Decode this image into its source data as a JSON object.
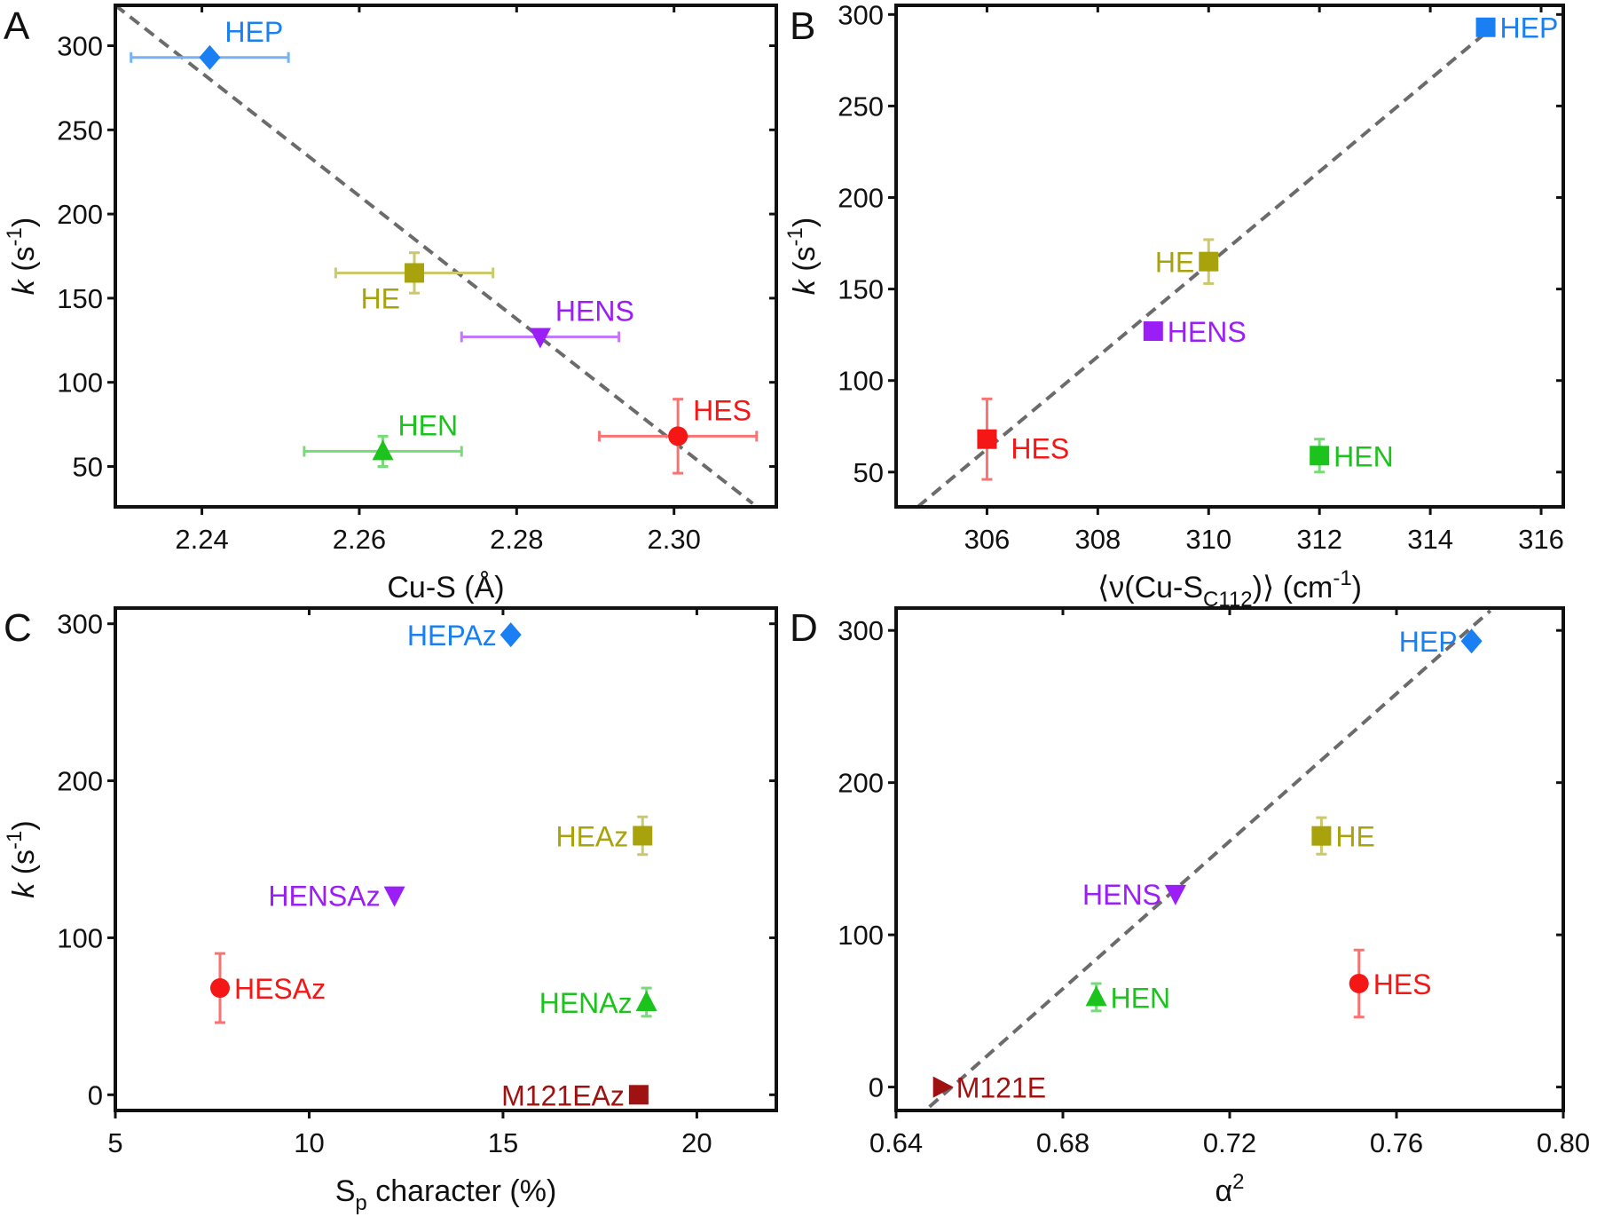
{
  "colors": {
    "HEP": "#1a7ff2",
    "HE": "#a8a30c",
    "HENS": "#9a1ef5",
    "HEN": "#1cc31c",
    "HES": "#f51616",
    "M121E": "#a01212",
    "fit": "#6b6b6b",
    "axis": "#111111"
  },
  "chart_data": [
    {
      "panel": "A",
      "type": "scatter",
      "xlabel": {
        "main": "Cu-S (Å)"
      },
      "ylabel": {
        "k": "k",
        "open": " (s",
        "sup": "-1",
        "close": ")"
      },
      "xlim": [
        2.229,
        2.313
      ],
      "ylim": [
        26,
        324
      ],
      "xticks": [
        {
          "v": 2.24,
          "label": "2.24"
        },
        {
          "v": 2.26,
          "label": "2.26"
        },
        {
          "v": 2.28,
          "label": "2.28"
        },
        {
          "v": 2.3,
          "label": "2.30"
        }
      ],
      "yticks": [
        {
          "v": 50,
          "label": "50"
        },
        {
          "v": 100,
          "label": "100"
        },
        {
          "v": 150,
          "label": "150"
        },
        {
          "v": 200,
          "label": "200"
        },
        {
          "v": 250,
          "label": "250"
        },
        {
          "v": 300,
          "label": "300"
        }
      ],
      "fit_line": [
        [
          2.229,
          324
        ],
        [
          2.31,
          28
        ]
      ],
      "points": [
        {
          "label": "HEP",
          "key": "HEP",
          "x": 2.241,
          "y": 293,
          "xerr": 0.01,
          "yerr": 0,
          "marker": "diamond",
          "label_pos": "above-right"
        },
        {
          "label": "HE",
          "key": "HE",
          "x": 2.267,
          "y": 165,
          "xerr": 0.01,
          "yerr": 12,
          "marker": "square",
          "label_pos": "below-left"
        },
        {
          "label": "HENS",
          "key": "HENS",
          "x": 2.283,
          "y": 127,
          "xerr": 0.01,
          "yerr": 0,
          "marker": "triangle-down",
          "label_pos": "above-right"
        },
        {
          "label": "HEN",
          "key": "HEN",
          "x": 2.263,
          "y": 59,
          "xerr": 0.01,
          "yerr": 9,
          "marker": "triangle-up",
          "label_pos": "above-right"
        },
        {
          "label": "HES",
          "key": "HES",
          "x": 2.3005,
          "y": 68,
          "xerr": 0.01,
          "yerr": 22,
          "marker": "circle",
          "label_pos": "above-right"
        }
      ]
    },
    {
      "panel": "B",
      "type": "scatter",
      "xlabel": {
        "pre": "⟨ν(Cu-S",
        "sub": "C112",
        "mid": ")⟩ (cm",
        "sup": "-1",
        "post": ")"
      },
      "ylabel": {
        "k": "k",
        "open": " (s",
        "sup": "-1",
        "close": ")"
      },
      "xlim": [
        304.36,
        316.4
      ],
      "ylim": [
        31,
        305
      ],
      "xticks": [
        {
          "v": 306,
          "label": "306"
        },
        {
          "v": 308,
          "label": "308"
        },
        {
          "v": 310,
          "label": "310"
        },
        {
          "v": 312,
          "label": "312"
        },
        {
          "v": 314,
          "label": "314"
        },
        {
          "v": 316,
          "label": "316"
        }
      ],
      "yticks": [
        {
          "v": 50,
          "label": "50"
        },
        {
          "v": 100,
          "label": "100"
        },
        {
          "v": 150,
          "label": "150"
        },
        {
          "v": 200,
          "label": "200"
        },
        {
          "v": 250,
          "label": "250"
        },
        {
          "v": 300,
          "label": "300"
        }
      ],
      "fit_line": [
        [
          304.75,
          31
        ],
        [
          315.0,
          290
        ]
      ],
      "points": [
        {
          "label": "HEP",
          "key": "HEP",
          "x": 315,
          "y": 293,
          "xerr": 0,
          "yerr": 0,
          "marker": "square",
          "label_pos": "right"
        },
        {
          "label": "HE",
          "key": "HE",
          "x": 310,
          "y": 165,
          "xerr": 0,
          "yerr": 12,
          "marker": "square",
          "label_pos": "left"
        },
        {
          "label": "HENS",
          "key": "HENS",
          "x": 309,
          "y": 127,
          "xerr": 0,
          "yerr": 0,
          "marker": "square",
          "label_pos": "right"
        },
        {
          "label": "HES",
          "key": "HES",
          "x": 306,
          "y": 68,
          "xerr": 0,
          "yerr": 22,
          "marker": "square",
          "label_pos": "right-low"
        },
        {
          "label": "HEN",
          "key": "HEN",
          "x": 312,
          "y": 59,
          "xerr": 0,
          "yerr": 9,
          "marker": "square",
          "label_pos": "right"
        }
      ]
    },
    {
      "panel": "C",
      "type": "scatter",
      "xlabel": {
        "pre": "S",
        "sub": "p",
        "mid": " character (%)"
      },
      "ylabel": {
        "k": "k",
        "open": " (s",
        "sup": "-1",
        "close": ")"
      },
      "xlim": [
        5,
        22.05
      ],
      "ylim": [
        -10,
        310
      ],
      "xticks": [
        {
          "v": 5,
          "label": "5"
        },
        {
          "v": 10,
          "label": "10"
        },
        {
          "v": 15,
          "label": "15"
        },
        {
          "v": 20,
          "label": "20"
        }
      ],
      "yticks": [
        {
          "v": 0,
          "label": "0"
        },
        {
          "v": 100,
          "label": "100"
        },
        {
          "v": 200,
          "label": "200"
        },
        {
          "v": 300,
          "label": "300"
        }
      ],
      "points": [
        {
          "label": "HEPAz",
          "key": "HEP",
          "x": 15.2,
          "y": 293,
          "xerr": 0,
          "yerr": 0,
          "marker": "diamond",
          "label_pos": "left"
        },
        {
          "label": "HEAz",
          "key": "HE",
          "x": 18.6,
          "y": 165,
          "xerr": 0,
          "yerr": 12,
          "marker": "square",
          "label_pos": "left"
        },
        {
          "label": "HENSAz",
          "key": "HENS",
          "x": 12.2,
          "y": 127,
          "xerr": 0,
          "yerr": 0,
          "marker": "triangle-down",
          "label_pos": "left"
        },
        {
          "label": "HESAz",
          "key": "HES",
          "x": 7.7,
          "y": 68,
          "xerr": 0,
          "yerr": 22,
          "marker": "circle",
          "label_pos": "right"
        },
        {
          "label": "HENAz",
          "key": "HEN",
          "x": 18.7,
          "y": 59,
          "xerr": 0,
          "yerr": 9,
          "marker": "triangle-up",
          "label_pos": "left"
        },
        {
          "label": "M121EAz",
          "key": "M121E",
          "x": 18.5,
          "y": 0,
          "xerr": 0,
          "yerr": 0,
          "marker": "square",
          "label_pos": "left"
        }
      ]
    },
    {
      "panel": "D",
      "type": "scatter",
      "xlabel": {
        "pre": "α",
        "sup": "2"
      },
      "ylabel": {
        "k": "",
        "open": "",
        "sup": "",
        "close": ""
      },
      "xlim": [
        0.64,
        0.8
      ],
      "ylim": [
        -15.4,
        314.7
      ],
      "xticks": [
        {
          "v": 0.64,
          "label": "0.64"
        },
        {
          "v": 0.68,
          "label": "0.68"
        },
        {
          "v": 0.72,
          "label": "0.72"
        },
        {
          "v": 0.76,
          "label": "0.76"
        },
        {
          "v": 0.8,
          "label": "0.80"
        }
      ],
      "yticks": [
        {
          "v": 0,
          "label": "0"
        },
        {
          "v": 100,
          "label": "100"
        },
        {
          "v": 200,
          "label": "200"
        },
        {
          "v": 300,
          "label": "300"
        }
      ],
      "fit_line": [
        [
          0.648,
          -13
        ],
        [
          0.7825,
          313
        ]
      ],
      "points": [
        {
          "label": "HEP",
          "key": "HEP",
          "x": 0.778,
          "y": 293,
          "xerr": 0,
          "yerr": 0,
          "marker": "diamond",
          "label_pos": "left"
        },
        {
          "label": "HE",
          "key": "HE",
          "x": 0.742,
          "y": 165,
          "xerr": 0,
          "yerr": 12,
          "marker": "square",
          "label_pos": "right"
        },
        {
          "label": "HENS",
          "key": "HENS",
          "x": 0.707,
          "y": 127,
          "xerr": 0,
          "yerr": 0,
          "marker": "triangle-down",
          "label_pos": "left"
        },
        {
          "label": "HEN",
          "key": "HEN",
          "x": 0.688,
          "y": 59,
          "xerr": 0,
          "yerr": 9,
          "marker": "triangle-up",
          "label_pos": "right"
        },
        {
          "label": "HES",
          "key": "HES",
          "x": 0.751,
          "y": 68,
          "xerr": 0,
          "yerr": 22,
          "marker": "circle",
          "label_pos": "right"
        },
        {
          "label": "M121E",
          "key": "M121E",
          "x": 0.651,
          "y": 0,
          "xerr": 0,
          "yerr": 0,
          "marker": "triangle-right",
          "label_pos": "right"
        }
      ]
    }
  ]
}
